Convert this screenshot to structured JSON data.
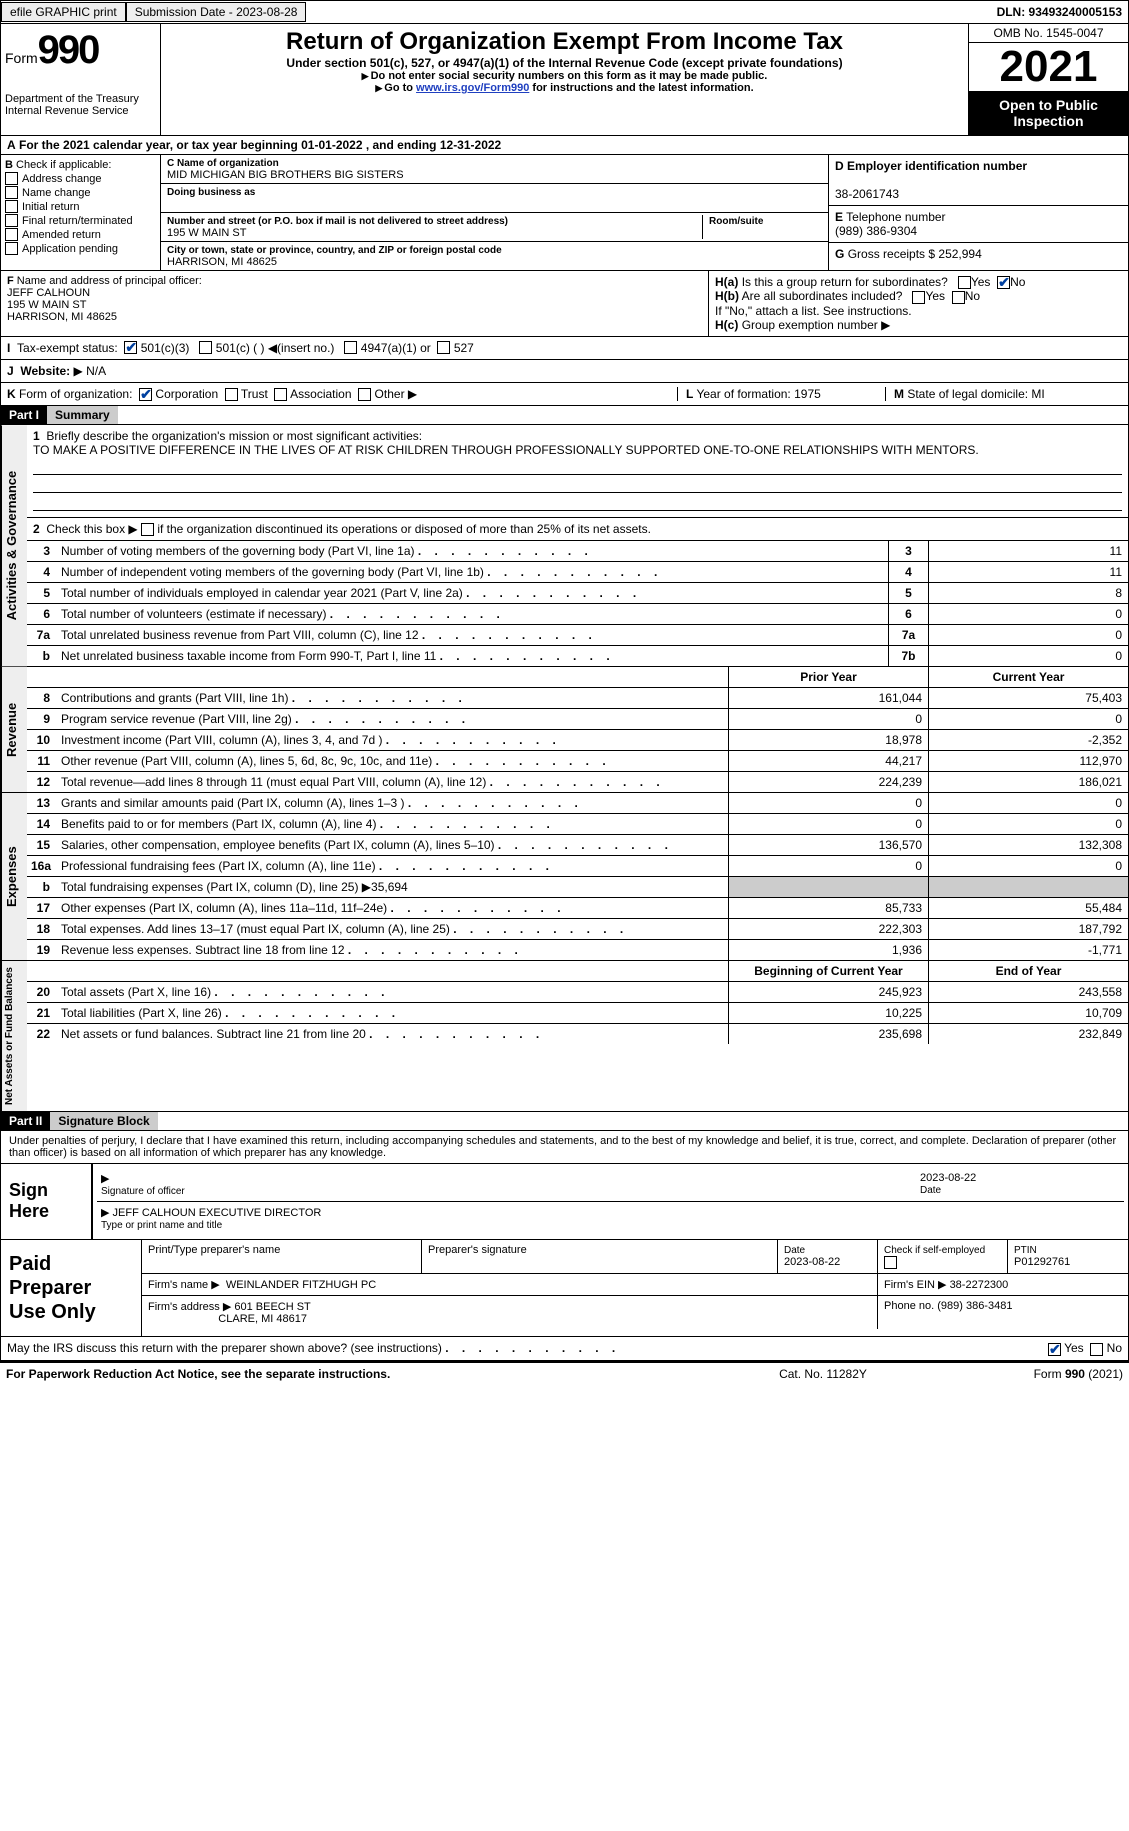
{
  "topbar": {
    "efile_label": "efile GRAPHIC print",
    "submission_label": "Submission Date - 2023-08-28",
    "dln_label": "DLN: 93493240005153"
  },
  "header": {
    "form_word": "Form",
    "form_num": "990",
    "dept": "Department of the Treasury",
    "irs": "Internal Revenue Service",
    "title": "Return of Organization Exempt From Income Tax",
    "sub": "Under section 501(c), 527, or 4947(a)(1) of the Internal Revenue Code (except private foundations)",
    "note1": "Do not enter social security numbers on this form as it may be made public.",
    "note2_pre": "Go to ",
    "note2_link": "www.irs.gov/Form990",
    "note2_post": " for instructions and the latest information.",
    "omb": "OMB No. 1545-0047",
    "year": "2021",
    "inspect": "Open to Public Inspection"
  },
  "calyear": {
    "text": "For the 2021 calendar year, or tax year beginning 01-01-2022   , and ending 12-31-2022"
  },
  "boxB": {
    "label": "Check if applicable:",
    "items": [
      "Address change",
      "Name change",
      "Initial return",
      "Final return/terminated",
      "Amended return",
      "Application pending"
    ]
  },
  "boxC": {
    "name_label": "Name of organization",
    "name": "MID MICHIGAN BIG BROTHERS BIG SISTERS",
    "dba_label": "Doing business as",
    "addr_label": "Number and street (or P.O. box if mail is not delivered to street address)",
    "room_label": "Room/suite",
    "addr": "195 W MAIN ST",
    "city_label": "City or town, state or province, country, and ZIP or foreign postal code",
    "city": "HARRISON, MI  48625"
  },
  "boxD": {
    "ein_label": "Employer identification number",
    "ein": "38-2061743",
    "tel_label": "Telephone number",
    "tel": "(989) 386-9304",
    "gross_label": "Gross receipts $",
    "gross": "252,994"
  },
  "boxF": {
    "label": "Name and address of principal officer:",
    "name": "JEFF CALHOUN",
    "addr1": "195 W MAIN ST",
    "addr2": "HARRISON, MI  48625"
  },
  "boxH": {
    "ha": "Is this a group return for subordinates?",
    "hb": "Are all subordinates included?",
    "hb_note": "If \"No,\" attach a list. See instructions.",
    "hc": "Group exemption number",
    "yes": "Yes",
    "no": "No"
  },
  "taxexempt": {
    "label": "Tax-exempt status:",
    "opt1": "501(c)(3)",
    "opt2": "501(c) (   )",
    "opt2_note": "(insert no.)",
    "opt3": "4947(a)(1) or",
    "opt4": "527"
  },
  "website": {
    "label": "Website:",
    "value": "N/A"
  },
  "formorg": {
    "label": "Form of organization:",
    "opts": [
      "Corporation",
      "Trust",
      "Association",
      "Other"
    ],
    "year_label": "Year of formation:",
    "year": "1975",
    "state_label": "State of legal domicile:",
    "state": "MI"
  },
  "part1": {
    "hdr": "Part I",
    "title": "Summary",
    "line1_label": "Briefly describe the organization's mission or most significant activities:",
    "line1_text": "TO MAKE A POSITIVE DIFFERENCE IN THE LIVES OF AT RISK CHILDREN THROUGH PROFESSIONALLY SUPPORTED ONE-TO-ONE RELATIONSHIPS WITH MENTORS.",
    "line2": "Check this box",
    "line2b": "if the organization discontinued its operations or disposed of more than 25% of its net assets."
  },
  "tabs": {
    "gov": "Activities & Governance",
    "rev": "Revenue",
    "exp": "Expenses",
    "net": "Net Assets or Fund Balances"
  },
  "govRows": [
    {
      "n": "3",
      "d": "Number of voting members of the governing body (Part VI, line 1a)",
      "c": "3",
      "v": "11"
    },
    {
      "n": "4",
      "d": "Number of independent voting members of the governing body (Part VI, line 1b)",
      "c": "4",
      "v": "11"
    },
    {
      "n": "5",
      "d": "Total number of individuals employed in calendar year 2021 (Part V, line 2a)",
      "c": "5",
      "v": "8"
    },
    {
      "n": "6",
      "d": "Total number of volunteers (estimate if necessary)",
      "c": "6",
      "v": "0"
    },
    {
      "n": "7a",
      "d": "Total unrelated business revenue from Part VIII, column (C), line 12",
      "c": "7a",
      "v": "0"
    },
    {
      "n": "b",
      "d": "Net unrelated business taxable income from Form 990-T, Part I, line 11",
      "c": "7b",
      "v": "0"
    }
  ],
  "colhdr": {
    "prior": "Prior Year",
    "curr": "Current Year",
    "boy": "Beginning of Current Year",
    "eoy": "End of Year"
  },
  "revRows": [
    {
      "n": "8",
      "d": "Contributions and grants (Part VIII, line 1h)",
      "p": "161,044",
      "c": "75,403"
    },
    {
      "n": "9",
      "d": "Program service revenue (Part VIII, line 2g)",
      "p": "0",
      "c": "0"
    },
    {
      "n": "10",
      "d": "Investment income (Part VIII, column (A), lines 3, 4, and 7d )",
      "p": "18,978",
      "c": "-2,352"
    },
    {
      "n": "11",
      "d": "Other revenue (Part VIII, column (A), lines 5, 6d, 8c, 9c, 10c, and 11e)",
      "p": "44,217",
      "c": "112,970"
    },
    {
      "n": "12",
      "d": "Total revenue—add lines 8 through 11 (must equal Part VIII, column (A), line 12)",
      "p": "224,239",
      "c": "186,021"
    }
  ],
  "expRows": [
    {
      "n": "13",
      "d": "Grants and similar amounts paid (Part IX, column (A), lines 1–3 )",
      "p": "0",
      "c": "0"
    },
    {
      "n": "14",
      "d": "Benefits paid to or for members (Part IX, column (A), line 4)",
      "p": "0",
      "c": "0"
    },
    {
      "n": "15",
      "d": "Salaries, other compensation, employee benefits (Part IX, column (A), lines 5–10)",
      "p": "136,570",
      "c": "132,308"
    },
    {
      "n": "16a",
      "d": "Professional fundraising fees (Part IX, column (A), line 11e)",
      "p": "0",
      "c": "0"
    },
    {
      "n": "b",
      "d": "Total fundraising expenses (Part IX, column (D), line 25) ▶35,694",
      "p": "",
      "c": "",
      "shaded": true
    },
    {
      "n": "17",
      "d": "Other expenses (Part IX, column (A), lines 11a–11d, 11f–24e)",
      "p": "85,733",
      "c": "55,484"
    },
    {
      "n": "18",
      "d": "Total expenses. Add lines 13–17 (must equal Part IX, column (A), line 25)",
      "p": "222,303",
      "c": "187,792"
    },
    {
      "n": "19",
      "d": "Revenue less expenses. Subtract line 18 from line 12",
      "p": "1,936",
      "c": "-1,771"
    }
  ],
  "netRows": [
    {
      "n": "20",
      "d": "Total assets (Part X, line 16)",
      "p": "245,923",
      "c": "243,558"
    },
    {
      "n": "21",
      "d": "Total liabilities (Part X, line 26)",
      "p": "10,225",
      "c": "10,709"
    },
    {
      "n": "22",
      "d": "Net assets or fund balances. Subtract line 21 from line 20",
      "p": "235,698",
      "c": "232,849"
    }
  ],
  "part2": {
    "hdr": "Part II",
    "title": "Signature Block",
    "decl": "Under penalties of perjury, I declare that I have examined this return, including accompanying schedules and statements, and to the best of my knowledge and belief, it is true, correct, and complete. Declaration of preparer (other than officer) is based on all information of which preparer has any knowledge."
  },
  "sign": {
    "label": "Sign Here",
    "sig_label": "Signature of officer",
    "date": "2023-08-22",
    "date_label": "Date",
    "name": "JEFF CALHOUN  EXECUTIVE DIRECTOR",
    "name_label": "Type or print name and title"
  },
  "prep": {
    "label": "Paid Preparer Use Only",
    "pname_label": "Print/Type preparer's name",
    "psig_label": "Preparer's signature",
    "pdate_label": "Date",
    "pdate": "2023-08-22",
    "pcheck_label": "Check        if self-employed",
    "ptin_label": "PTIN",
    "ptin": "P01292761",
    "firm_label": "Firm's name    ▶",
    "firm": "WEINLANDER FITZHUGH PC",
    "ein_label": "Firm's EIN ▶",
    "ein": "38-2272300",
    "addr_label": "Firm's address ▶",
    "addr1": "601 BEECH ST",
    "addr2": "CLARE, MI  48617",
    "phone_label": "Phone no.",
    "phone": "(989) 386-3481"
  },
  "footer": {
    "discuss": "May the IRS discuss this return with the preparer shown above? (see instructions)",
    "yes": "Yes",
    "no": "No",
    "paperwork": "For Paperwork Reduction Act Notice, see the separate instructions.",
    "cat": "Cat. No. 11282Y",
    "formref": "Form 990 (2021)"
  },
  "letters": {
    "A": "A",
    "B": "B",
    "C": "C",
    "D": "D",
    "E": "E",
    "F": "F",
    "G": "G",
    "H": "H",
    "Ha": "H(a)",
    "Hb": "H(b)",
    "Hc": "H(c)",
    "I": "I",
    "J": "J",
    "K": "K",
    "L": "L",
    "M": "M"
  }
}
